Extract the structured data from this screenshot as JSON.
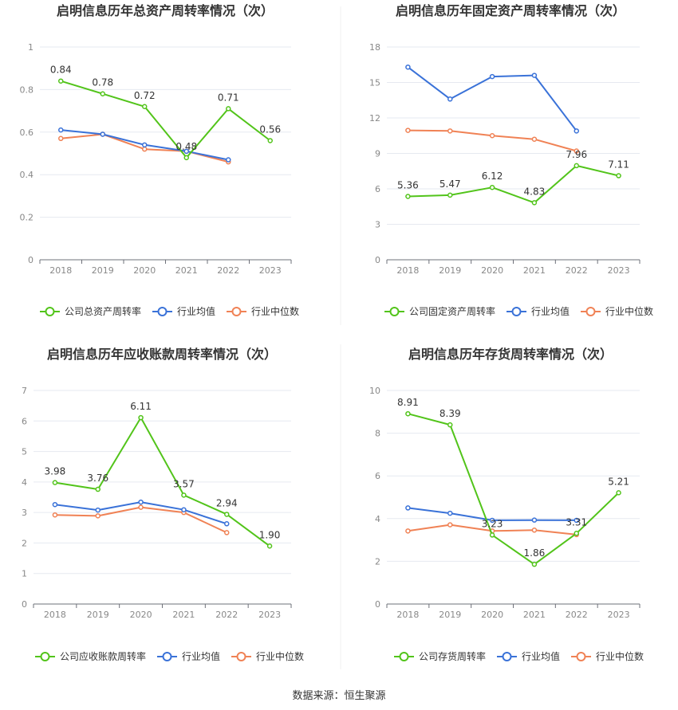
{
  "source_text": "数据来源：恒生聚源",
  "colors": {
    "company": "#52c41a",
    "avg": "#3a72d8",
    "median": "#f08255"
  },
  "chart_data": [
    {
      "type": "line",
      "title": "启明信息历年总资产周转率情况（次）",
      "x": [
        "2018",
        "2019",
        "2020",
        "2021",
        "2022",
        "2023"
      ],
      "ylim": [
        0,
        1
      ],
      "yticks": [
        "0",
        "0.2",
        "0.4",
        "0.6",
        "0.8",
        "1"
      ],
      "grid": true,
      "legend_position": "bottom",
      "series": [
        {
          "name": "公司总资产周转率",
          "role": "company",
          "values": [
            0.84,
            0.78,
            0.72,
            0.48,
            0.71,
            0.56
          ],
          "labels": [
            "0.84",
            "0.78",
            "0.72",
            "0.48",
            "0.71",
            "0.56"
          ]
        },
        {
          "name": "行业均值",
          "role": "avg",
          "values": [
            0.61,
            0.59,
            0.54,
            0.51,
            0.47,
            null
          ]
        },
        {
          "name": "行业中位数",
          "role": "median",
          "values": [
            0.57,
            0.59,
            0.52,
            0.51,
            0.46,
            null
          ]
        }
      ]
    },
    {
      "type": "line",
      "title": "启明信息历年固定资产周转率情况（次）",
      "x": [
        "2018",
        "2019",
        "2020",
        "2021",
        "2022",
        "2023"
      ],
      "ylim": [
        0,
        18
      ],
      "yticks": [
        "0",
        "3",
        "6",
        "9",
        "12",
        "15",
        "18"
      ],
      "grid": true,
      "legend_position": "bottom",
      "series": [
        {
          "name": "公司固定资产周转率",
          "role": "company",
          "values": [
            5.36,
            5.47,
            6.12,
            4.83,
            7.96,
            7.11
          ],
          "labels": [
            "5.36",
            "5.47",
            "6.12",
            "4.83",
            "7.96",
            "7.11"
          ]
        },
        {
          "name": "行业均值",
          "role": "avg",
          "values": [
            16.3,
            13.6,
            15.5,
            15.6,
            10.9,
            null
          ]
        },
        {
          "name": "行业中位数",
          "role": "median",
          "values": [
            10.95,
            10.9,
            10.5,
            10.2,
            9.2,
            null
          ]
        }
      ]
    },
    {
      "type": "line",
      "title": "启明信息历年应收账款周转率情况（次）",
      "x": [
        "2018",
        "2019",
        "2020",
        "2021",
        "2022",
        "2023"
      ],
      "ylim": [
        0,
        7
      ],
      "yticks": [
        "0",
        "1",
        "2",
        "3",
        "4",
        "5",
        "6",
        "7"
      ],
      "grid": true,
      "legend_position": "bottom",
      "series": [
        {
          "name": "公司应收账款周转率",
          "role": "company",
          "values": [
            3.98,
            3.76,
            6.11,
            3.57,
            2.94,
            1.9
          ],
          "labels": [
            "3.98",
            "3.76",
            "6.11",
            "3.57",
            "2.94",
            "1.90"
          ]
        },
        {
          "name": "行业均值",
          "role": "avg",
          "values": [
            3.26,
            3.08,
            3.34,
            3.09,
            2.63,
            null
          ]
        },
        {
          "name": "行业中位数",
          "role": "median",
          "values": [
            2.92,
            2.89,
            3.17,
            3.0,
            2.34,
            null
          ]
        }
      ]
    },
    {
      "type": "line",
      "title": "启明信息历年存货周转率情况（次）",
      "x": [
        "2018",
        "2019",
        "2020",
        "2021",
        "2022",
        "2023"
      ],
      "ylim": [
        0,
        10
      ],
      "yticks": [
        "0",
        "2",
        "4",
        "6",
        "8",
        "10"
      ],
      "grid": true,
      "legend_position": "bottom",
      "series": [
        {
          "name": "公司存货周转率",
          "role": "company",
          "values": [
            8.91,
            8.39,
            3.23,
            1.86,
            3.31,
            5.21
          ],
          "labels": [
            "8.91",
            "8.39",
            "3.23",
            "1.86",
            "3.31",
            "5.21"
          ]
        },
        {
          "name": "行业均值",
          "role": "avg",
          "values": [
            4.5,
            4.25,
            3.92,
            3.93,
            3.92,
            null
          ]
        },
        {
          "name": "行业中位数",
          "role": "median",
          "values": [
            3.42,
            3.71,
            3.42,
            3.46,
            3.25,
            null
          ]
        }
      ]
    }
  ]
}
